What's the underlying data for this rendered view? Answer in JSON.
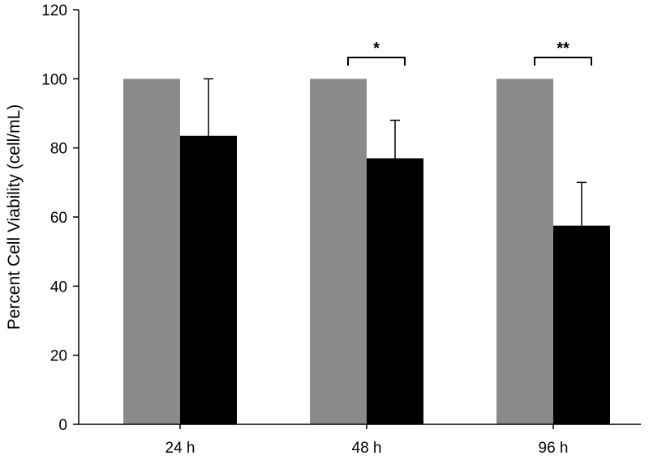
{
  "chart_data": {
    "type": "bar",
    "title": "",
    "xlabel": "",
    "ylabel": "Percent Cell Viability (cell/mL)",
    "ylim": [
      0,
      120
    ],
    "yticks": [
      0,
      20,
      40,
      60,
      80,
      100,
      120
    ],
    "categories": [
      "24 h",
      "48 h",
      "96 h"
    ],
    "grid": false,
    "legend": "none",
    "series": [
      {
        "color": "#8a8a8a",
        "values": [
          100,
          100,
          100
        ],
        "errors": [
          0,
          0,
          0
        ]
      },
      {
        "color": "#000000",
        "values": [
          83.5,
          77,
          57.5
        ],
        "errors": [
          16.5,
          11,
          12.5
        ]
      }
    ],
    "significance": [
      {
        "category": "48 h",
        "label": "*"
      },
      {
        "category": "96 h",
        "label": "**"
      }
    ]
  }
}
